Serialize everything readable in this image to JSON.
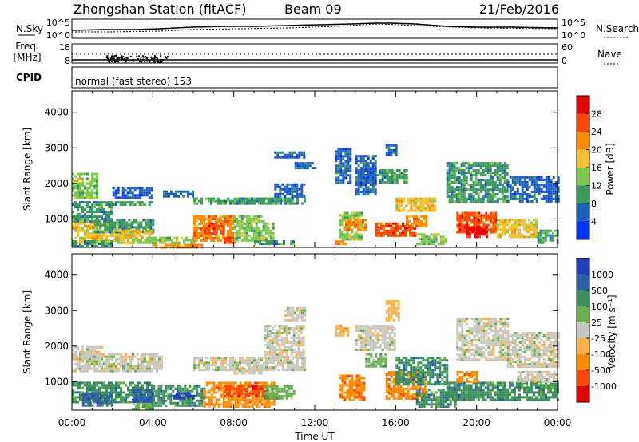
{
  "header": {
    "station": "Zhongshan Station (fitACF)",
    "beam": "Beam 09",
    "date": "21/Feb/2016"
  },
  "nsky_panel": {
    "left_label": "N.Sky",
    "right_label": "N.Search",
    "left_ticks": [
      "10^5",
      "10^0"
    ],
    "right_ticks": [
      "10^5",
      "10^0"
    ]
  },
  "freq_panel": {
    "left_label_1": "Freq.",
    "left_label_2": "[MHz]",
    "right_label": "Nave",
    "left_ticks": [
      "18",
      "8"
    ],
    "right_ticks": [
      "60",
      "0"
    ]
  },
  "cpid_panel": {
    "label": "CPID",
    "mode": "normal (fast stereo) 153"
  },
  "colors": {
    "power": [
      "#0033ff",
      "#1e5fbe",
      "#3a9a5b",
      "#7ec850",
      "#f2c12e",
      "#ff8c00",
      "#ff4500",
      "#e60000"
    ],
    "velocity": [
      "#e60000",
      "#ff4500",
      "#ff8c00",
      "#ffb347",
      "#c8c8c0",
      "#6ab04c",
      "#3a8f5c",
      "#2a5fa5",
      "#1e3fbe"
    ]
  },
  "chart_data": [
    {
      "type": "heatmap",
      "quantity": "power",
      "ylabel": "Slant Range [km]",
      "yticks": [
        1000,
        2000,
        3000,
        4000
      ],
      "ylim": [
        200,
        4600
      ],
      "xlim_hours": [
        0,
        24
      ],
      "colorbar_label": "Power [dB]",
      "colorbar_ticks": [
        "4",
        "8",
        "12",
        "16",
        "20",
        "24",
        "28"
      ],
      "cells": [
        [
          0.0,
          1.2,
          1600,
          2300,
          3
        ],
        [
          0.0,
          2.0,
          900,
          1500,
          2
        ],
        [
          0.0,
          3.0,
          300,
          900,
          4
        ],
        [
          0.0,
          2.0,
          200,
          400,
          2
        ],
        [
          2.0,
          4.0,
          1600,
          1900,
          1
        ],
        [
          2.0,
          4.0,
          1400,
          1500,
          2
        ],
        [
          1.0,
          4.0,
          600,
          1000,
          2
        ],
        [
          2.0,
          4.0,
          400,
          700,
          4
        ],
        [
          3.0,
          6.0,
          300,
          500,
          3
        ],
        [
          4.0,
          6.5,
          200,
          300,
          5
        ],
        [
          4.5,
          6.0,
          1600,
          1800,
          1
        ],
        [
          6.0,
          8.0,
          400,
          1100,
          5
        ],
        [
          6.5,
          7.5,
          600,
          900,
          6
        ],
        [
          7.5,
          8.0,
          300,
          500,
          6
        ],
        [
          8.0,
          10.0,
          400,
          900,
          3
        ],
        [
          8.0,
          10.0,
          1400,
          1600,
          2
        ],
        [
          6.0,
          11.5,
          1400,
          1600,
          2
        ],
        [
          10.0,
          11.5,
          1600,
          2000,
          1
        ],
        [
          10.0,
          11.5,
          2700,
          2900,
          1
        ],
        [
          11.0,
          12.0,
          2400,
          2600,
          1
        ],
        [
          8.0,
          9.5,
          900,
          1100,
          3
        ],
        [
          9.0,
          11.0,
          300,
          400,
          2
        ],
        [
          13.0,
          13.8,
          2000,
          3000,
          1
        ],
        [
          13.2,
          14.3,
          400,
          1200,
          3
        ],
        [
          13.5,
          14.5,
          700,
          1000,
          5
        ],
        [
          14.0,
          16.5,
          2000,
          2400,
          2
        ],
        [
          14.0,
          15.0,
          1700,
          2800,
          1
        ],
        [
          15.0,
          17.0,
          500,
          900,
          6
        ],
        [
          16.0,
          18.0,
          1200,
          1600,
          4
        ],
        [
          16.5,
          17.5,
          800,
          1100,
          5
        ],
        [
          17.0,
          18.5,
          300,
          600,
          3
        ],
        [
          18.5,
          21.5,
          1500,
          2600,
          2
        ],
        [
          19.0,
          21.0,
          600,
          1200,
          6
        ],
        [
          19.5,
          20.5,
          500,
          800,
          7
        ],
        [
          21.0,
          23.0,
          500,
          1000,
          4
        ],
        [
          21.5,
          24.0,
          1500,
          2200,
          1
        ],
        [
          23.0,
          24.0,
          300,
          700,
          2
        ],
        [
          15.5,
          16.0,
          2800,
          3100,
          1
        ],
        [
          13.0,
          13.5,
          300,
          400,
          5
        ]
      ]
    },
    {
      "type": "heatmap",
      "quantity": "velocity",
      "xlabel": "Time UT",
      "ylabel": "Slant Range [km]",
      "yticks": [
        1000,
        2000,
        3000,
        4000
      ],
      "xticks": [
        "00:00",
        "04:00",
        "08:00",
        "12:00",
        "16:00",
        "20:00",
        "00:00"
      ],
      "ylim": [
        200,
        4600
      ],
      "xlim_hours": [
        0,
        24
      ],
      "colorbar_label": "Velocity [m s⁻¹]",
      "colorbar_ticks": [
        "-1000",
        "-500",
        "-100",
        "-25",
        "25",
        "100",
        "500",
        "1000"
      ],
      "cells": [
        [
          0.0,
          1.5,
          1600,
          2000,
          4
        ],
        [
          0.0,
          4.5,
          1300,
          1800,
          4
        ],
        [
          0.0,
          4.0,
          400,
          1000,
          6
        ],
        [
          0.5,
          2.0,
          300,
          700,
          7
        ],
        [
          3.0,
          4.0,
          400,
          800,
          7
        ],
        [
          4.0,
          6.5,
          300,
          900,
          6
        ],
        [
          5.0,
          6.0,
          500,
          700,
          8
        ],
        [
          6.5,
          10.0,
          300,
          1000,
          2
        ],
        [
          7.5,
          9.5,
          600,
          900,
          1
        ],
        [
          9.5,
          11.0,
          500,
          900,
          5
        ],
        [
          6.0,
          11.5,
          1300,
          1700,
          4
        ],
        [
          9.5,
          11.5,
          1700,
          2600,
          4
        ],
        [
          10.5,
          11.5,
          2700,
          3100,
          4
        ],
        [
          3.0,
          4.0,
          200,
          400,
          5
        ],
        [
          8.0,
          9.5,
          1200,
          1400,
          4
        ],
        [
          13.2,
          14.5,
          500,
          1200,
          2
        ],
        [
          14.0,
          16.0,
          1900,
          2600,
          4
        ],
        [
          14.5,
          15.5,
          1400,
          1800,
          5
        ],
        [
          15.5,
          17.5,
          500,
          1300,
          2
        ],
        [
          16.0,
          18.5,
          900,
          1700,
          6
        ],
        [
          17.0,
          19.0,
          300,
          800,
          6
        ],
        [
          15.5,
          16.2,
          2700,
          3300,
          3
        ],
        [
          13.0,
          13.6,
          2300,
          2600,
          3
        ],
        [
          18.5,
          21.0,
          500,
          1000,
          6
        ],
        [
          19.0,
          21.5,
          1600,
          2800,
          4
        ],
        [
          19.0,
          20.0,
          1000,
          1300,
          2
        ],
        [
          21.0,
          24.0,
          500,
          1000,
          6
        ],
        [
          21.5,
          24.0,
          1400,
          2400,
          4
        ],
        [
          22.0,
          24.0,
          1000,
          1300,
          4
        ]
      ]
    }
  ]
}
